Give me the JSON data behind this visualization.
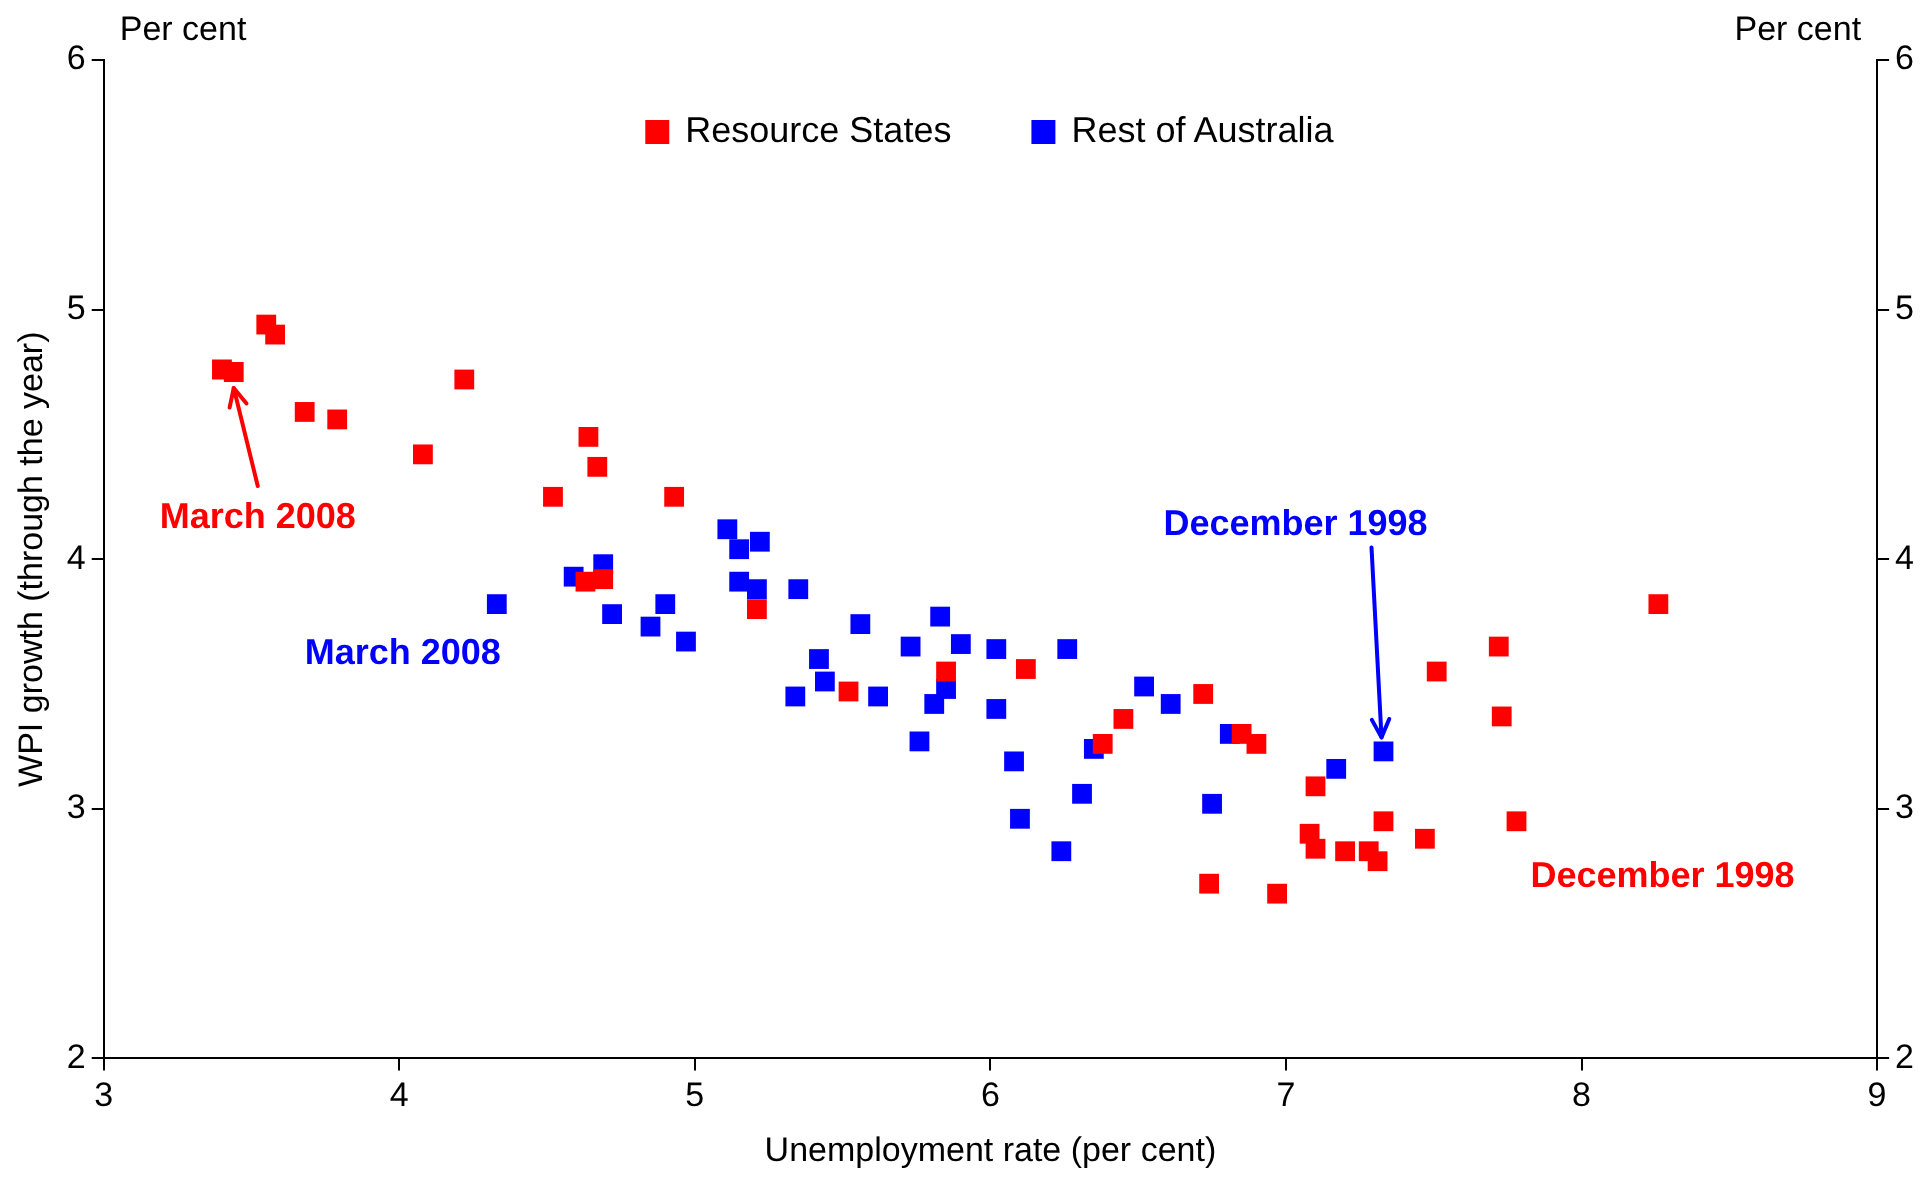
{
  "chart_data": {
    "type": "scatter",
    "xlabel": "Unemployment rate (per cent)",
    "ylabel": "WPI growth (through the year)",
    "xlim": [
      3,
      9
    ],
    "xticks": [
      3,
      4,
      5,
      6,
      7,
      8,
      9
    ],
    "ylim": [
      2,
      6
    ],
    "yticks": [
      2,
      3,
      4,
      5,
      6
    ],
    "y2lim": [
      2,
      6
    ],
    "y2ticks": [
      2,
      3,
      4,
      5,
      6
    ],
    "grid": false,
    "legend": "top",
    "marker": "square",
    "annotations": [
      "Per cent",
      "Per cent",
      {
        "text": "March 2008",
        "x": 3.44,
        "y": 4.75
      },
      {
        "text": "March 2008",
        "x": 4.33,
        "y": 3.82
      },
      {
        "text": "December 1998",
        "x": 7.33,
        "y": 3.23
      },
      {
        "text": "December 1998",
        "x": 7.78,
        "y": 2.95
      }
    ],
    "series": [
      {
        "name": "Resource States",
        "color": "#ff0000",
        "x": [
          3.4,
          3.44,
          3.55,
          3.58,
          3.68,
          3.79,
          4.08,
          4.22,
          4.52,
          4.64,
          4.67,
          4.63,
          4.69,
          4.93,
          5.21,
          5.52,
          5.85,
          6.12,
          6.38,
          6.45,
          6.72,
          6.85,
          6.9,
          6.74,
          6.97,
          7.1,
          7.08,
          7.1,
          7.2,
          7.28,
          7.31,
          7.33,
          7.47,
          7.51,
          7.72,
          7.73,
          7.78,
          8.26
        ],
        "values": [
          4.76,
          4.75,
          4.94,
          4.9,
          4.59,
          4.56,
          4.42,
          4.72,
          4.25,
          4.49,
          4.37,
          3.91,
          3.92,
          4.25,
          3.8,
          3.47,
          3.55,
          3.56,
          3.26,
          3.36,
          3.46,
          3.3,
          3.26,
          2.7,
          2.66,
          3.09,
          2.9,
          2.84,
          2.83,
          2.83,
          2.79,
          2.95,
          2.88,
          3.55,
          3.65,
          3.37,
          2.95,
          3.82
        ]
      },
      {
        "name": "Rest of Australia",
        "color": "#0000ff",
        "x": [
          4.33,
          4.59,
          4.69,
          4.72,
          4.85,
          4.9,
          4.97,
          5.11,
          5.15,
          5.22,
          5.15,
          5.21,
          5.35,
          5.42,
          5.44,
          5.34,
          5.62,
          5.56,
          5.73,
          5.83,
          5.9,
          5.81,
          5.85,
          5.76,
          6.02,
          6.02,
          6.08,
          6.1,
          6.26,
          6.24,
          6.31,
          6.35,
          6.52,
          6.61,
          6.75,
          6.81,
          7.17,
          7.33
        ],
        "values": [
          3.82,
          3.93,
          3.98,
          3.78,
          3.73,
          3.82,
          3.67,
          4.12,
          4.04,
          4.07,
          3.91,
          3.88,
          3.88,
          3.6,
          3.51,
          3.45,
          3.45,
          3.74,
          3.65,
          3.77,
          3.66,
          3.42,
          3.48,
          3.27,
          3.64,
          3.4,
          3.19,
          2.96,
          3.64,
          2.83,
          3.06,
          3.24,
          3.49,
          3.42,
          3.02,
          3.3,
          3.16,
          3.23
        ]
      }
    ]
  }
}
